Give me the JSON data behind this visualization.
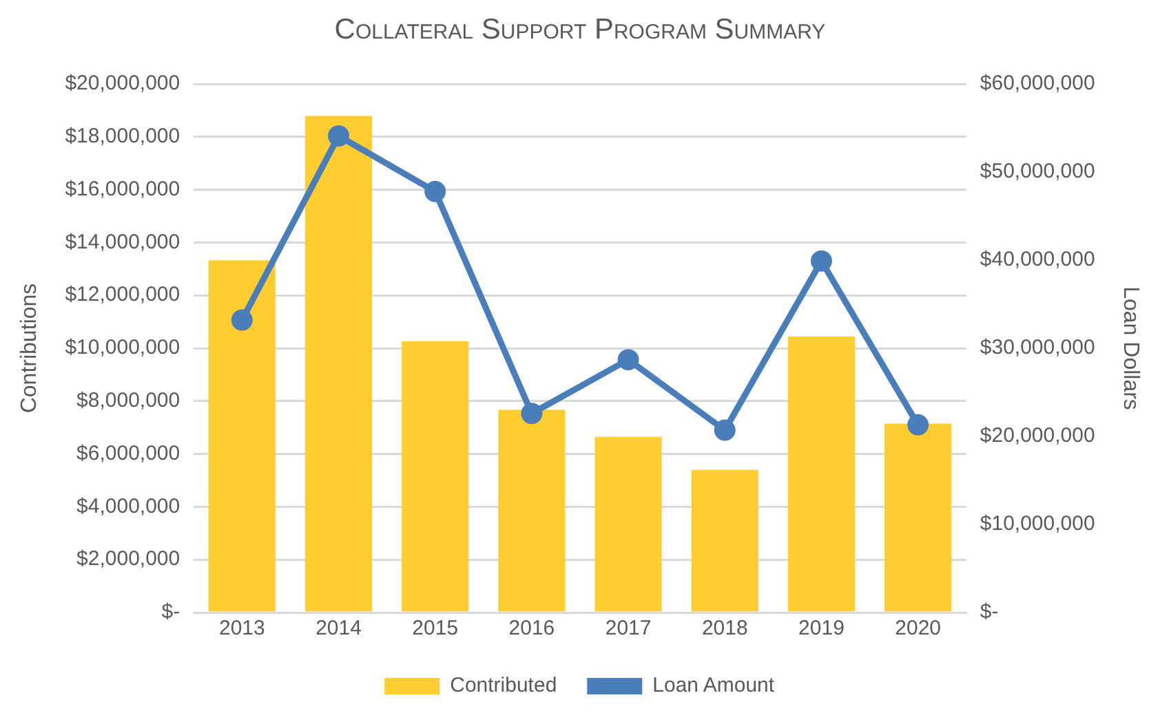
{
  "chart_data": {
    "type": "bar",
    "title": "Collateral Support Program Summary",
    "ylabel": "Contributions",
    "y2label": "Loan Dollars",
    "categories": [
      "2013",
      "2014",
      "2015",
      "2016",
      "2017",
      "2018",
      "2019",
      "2020"
    ],
    "series": [
      {
        "name": "Contributed",
        "color": "#ffcd2f",
        "values": [
          13330000,
          18790000,
          10270000,
          7670000,
          6650000,
          5400000,
          10440000,
          7150000
        ]
      },
      {
        "name": "Loan Amount",
        "type": "line",
        "axis": "y2",
        "color": "#4a7ebb",
        "values": [
          33200000,
          54100000,
          47800000,
          22600000,
          28700000,
          20700000,
          39900000,
          21300000
        ]
      }
    ],
    "ylim": [
      0,
      20000000
    ],
    "yticks": [
      {
        "value": 0,
        "label": "$-"
      },
      {
        "value": 2000000,
        "label": "$2,000,000"
      },
      {
        "value": 4000000,
        "label": "$4,000,000"
      },
      {
        "value": 6000000,
        "label": "$6,000,000"
      },
      {
        "value": 8000000,
        "label": "$8,000,000"
      },
      {
        "value": 10000000,
        "label": "$10,000,000"
      },
      {
        "value": 12000000,
        "label": "$12,000,000"
      },
      {
        "value": 14000000,
        "label": "$14,000,000"
      },
      {
        "value": 16000000,
        "label": "$16,000,000"
      },
      {
        "value": 18000000,
        "label": "$18,000,000"
      },
      {
        "value": 20000000,
        "label": "$20,000,000"
      }
    ],
    "y2lim": [
      0,
      60000000
    ],
    "y2ticks": [
      {
        "value": 0,
        "label": "$-"
      },
      {
        "value": 10000000,
        "label": "$10,000,000"
      },
      {
        "value": 20000000,
        "label": "$20,000,000"
      },
      {
        "value": 30000000,
        "label": "$30,000,000"
      },
      {
        "value": 40000000,
        "label": "$40,000,000"
      },
      {
        "value": 50000000,
        "label": "$50,000,000"
      },
      {
        "value": 60000000,
        "label": "$60,000,000"
      }
    ],
    "grid": "y",
    "legend": "bottom",
    "marker": "circle",
    "line_style": "solid"
  }
}
